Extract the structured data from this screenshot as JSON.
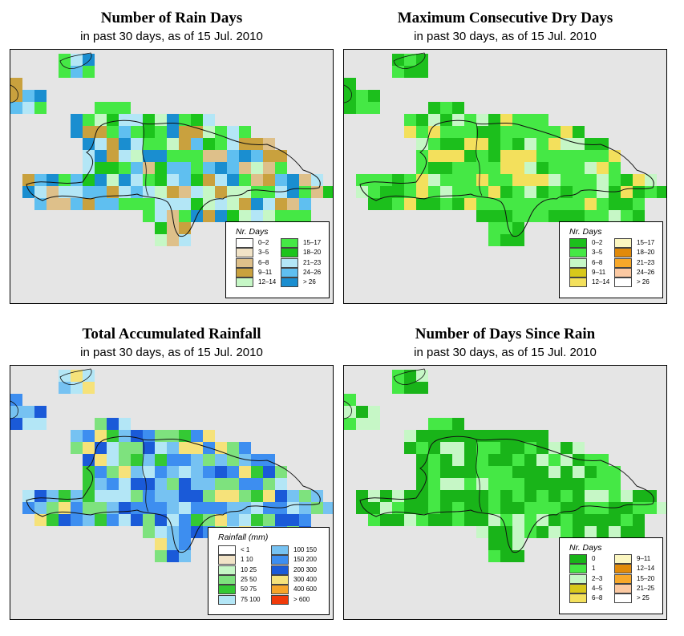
{
  "panels": [
    {
      "id": "rain-days",
      "title": "Number of Rain Days",
      "subtitle": "in past 30 days, as of  15 Jul. 2010",
      "legend_title": "Nr. Days",
      "legend": [
        {
          "label": "0–2",
          "color": "#ffffff"
        },
        {
          "label": "3–5",
          "color": "#f1e3c7"
        },
        {
          "label": "6–8",
          "color": "#dec08a"
        },
        {
          "label": "9–11",
          "color": "#c9a13e"
        },
        {
          "label": "12–14",
          "color": "#c6f7c6"
        },
        {
          "label": "15–17",
          "color": "#45e845"
        },
        {
          "label": "18–20",
          "color": "#1cc41c"
        },
        {
          "label": "21–23",
          "color": "#b3e6f6"
        },
        {
          "label": "24–26",
          "color": "#5fbff0"
        },
        {
          "label": "> 26",
          "color": "#1a8ed0"
        }
      ]
    },
    {
      "id": "max-dry-days",
      "title": "Maximum Consecutive Dry Days",
      "subtitle": "in past 30 days, as of  15 Jul. 2010",
      "legend_title": "Nr. Days",
      "legend": [
        {
          "label": "0–2",
          "color": "#1cbf1c"
        },
        {
          "label": "3–5",
          "color": "#45e845"
        },
        {
          "label": "6–8",
          "color": "#c6f7c6"
        },
        {
          "label": "9–11",
          "color": "#d8c81a"
        },
        {
          "label": "12–14",
          "color": "#f3e05c"
        },
        {
          "label": "15–17",
          "color": "#fbf6c0"
        },
        {
          "label": "18–20",
          "color": "#e18a0a"
        },
        {
          "label": "21–23",
          "color": "#f7a82a"
        },
        {
          "label": "24–26",
          "color": "#fbc9a2"
        },
        {
          "label": "> 26",
          "color": "#ffffff"
        }
      ]
    },
    {
      "id": "total-rainfall",
      "title": "Total Accumulated Rainfall",
      "subtitle": "in past 30 days, as of  15 Jul. 2010",
      "legend_title": "Rainfall (mm)",
      "legend": [
        {
          "label": "< 1",
          "color": "#ffffff"
        },
        {
          "label": "1   10",
          "color": "#f1e3c7"
        },
        {
          "label": "10   25",
          "color": "#c6f7c6"
        },
        {
          "label": "25   50",
          "color": "#7ee27e"
        },
        {
          "label": "50   75",
          "color": "#34c934"
        },
        {
          "label": "75   100",
          "color": "#b3e6f6"
        },
        {
          "label": "100   150",
          "color": "#76c2f2"
        },
        {
          "label": "150   200",
          "color": "#3d8ef0"
        },
        {
          "label": "200   300",
          "color": "#1a5ad8"
        },
        {
          "label": "300   400",
          "color": "#f6e27a"
        },
        {
          "label": "400   600",
          "color": "#f6a52a"
        },
        {
          "label": "> 600",
          "color": "#f03a0a"
        }
      ]
    },
    {
      "id": "days-since-rain",
      "title": "Number of Days Since Rain",
      "subtitle": "in past 30 days, as of  15 Jul. 2010",
      "legend_title": "Nr. Days",
      "legend": [
        {
          "label": "0",
          "color": "#19b419"
        },
        {
          "label": "1",
          "color": "#45e845"
        },
        {
          "label": "2–3",
          "color": "#c6f7c6"
        },
        {
          "label": "4–5",
          "color": "#d8c81a"
        },
        {
          "label": "6–8",
          "color": "#f3e05c"
        },
        {
          "label": "9–11",
          "color": "#fbf6c0"
        },
        {
          "label": "12–14",
          "color": "#e18a0a"
        },
        {
          "label": "15–20",
          "color": "#f7a82a"
        },
        {
          "label": "21–25",
          "color": "#fbc9a2"
        },
        {
          "label": "> 25",
          "color": "#ffffff"
        }
      ]
    }
  ]
}
